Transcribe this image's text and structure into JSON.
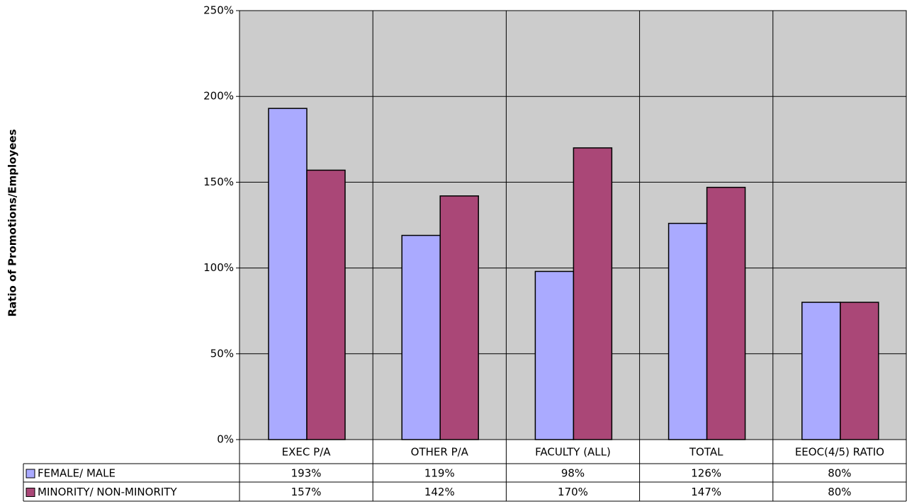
{
  "chart_data": {
    "type": "bar",
    "y_label": "Ratio of Promotions/Employees",
    "categories": [
      "EXEC P/A",
      "OTHER P/A",
      "FACULTY (ALL)",
      "TOTAL",
      "EEOC(4/5) RATIO"
    ],
    "series": [
      {
        "name": "FEMALE/ MALE",
        "color": "#aaaaff",
        "values": [
          193,
          119,
          98,
          126,
          80
        ],
        "value_labels": [
          "193%",
          "119%",
          "98%",
          "126%",
          "80%"
        ]
      },
      {
        "name": "MINORITY/ NON-MINORITY",
        "color": "#aa4777",
        "values": [
          157,
          142,
          170,
          147,
          80
        ],
        "value_labels": [
          "157%",
          "142%",
          "170%",
          "147%",
          "80%"
        ]
      }
    ],
    "ylim": [
      0,
      250
    ],
    "yticks": [
      {
        "value": 0,
        "label": "0%"
      },
      {
        "value": 50,
        "label": "50%"
      },
      {
        "value": 100,
        "label": "100%"
      },
      {
        "value": 150,
        "label": "150%"
      },
      {
        "value": 200,
        "label": "200%"
      },
      {
        "value": 250,
        "label": "250%"
      }
    ],
    "grid": true,
    "plot_background": "#cccccc"
  }
}
